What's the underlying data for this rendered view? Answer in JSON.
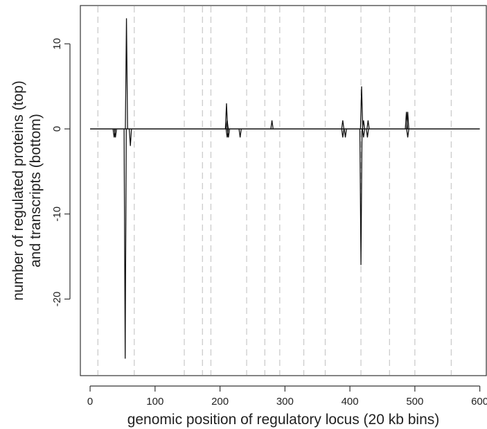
{
  "chart_data": {
    "type": "line",
    "xlabel": "genomic position of regulatory locus (20 kb bins)",
    "ylabel_lines": [
      "number of regulated proteins (top)",
      "and transcripts (bottom)"
    ],
    "xlim": [
      -15,
      610
    ],
    "ylim": [
      -29,
      14.5
    ],
    "x_ticks": [
      0,
      100,
      200,
      300,
      400,
      500,
      600
    ],
    "y_ticks": [
      -20,
      -10,
      0,
      10
    ],
    "chromosome_boundaries": [
      12,
      68,
      145,
      173,
      186,
      241,
      269,
      292,
      329,
      362,
      417,
      461,
      500,
      556
    ],
    "baseline": {
      "x_start": 0,
      "x_end": 600,
      "y": 0
    },
    "protein_spikes": [
      {
        "x": 56,
        "y": 13
      },
      {
        "x": 210,
        "y": 3
      },
      {
        "x": 211,
        "y": 1
      },
      {
        "x": 280,
        "y": 1
      },
      {
        "x": 389,
        "y": 1
      },
      {
        "x": 418,
        "y": 5
      },
      {
        "x": 421,
        "y": 1
      },
      {
        "x": 428,
        "y": 1
      },
      {
        "x": 487,
        "y": 2
      },
      {
        "x": 489,
        "y": 2
      }
    ],
    "transcript_spikes": [
      {
        "x": 37,
        "y": -1
      },
      {
        "x": 39,
        "y": -1
      },
      {
        "x": 54,
        "y": -27
      },
      {
        "x": 62,
        "y": -2
      },
      {
        "x": 211,
        "y": -1
      },
      {
        "x": 213,
        "y": -1
      },
      {
        "x": 231,
        "y": -1
      },
      {
        "x": 389,
        "y": -1
      },
      {
        "x": 393,
        "y": -1
      },
      {
        "x": 417,
        "y": -16
      },
      {
        "x": 421,
        "y": -1
      },
      {
        "x": 427,
        "y": -1
      },
      {
        "x": 489,
        "y": -1
      }
    ]
  }
}
